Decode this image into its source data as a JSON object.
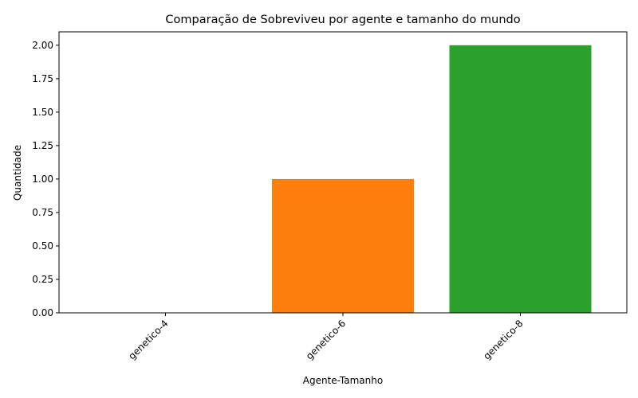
{
  "chart_data": {
    "type": "bar",
    "title": "Comparação de Sobreviveu por agente e tamanho do mundo",
    "xlabel": "Agente-Tamanho",
    "ylabel": "Quantidade",
    "categories": [
      "genetico-4",
      "genetico-6",
      "genetico-8"
    ],
    "values": [
      0,
      1,
      2
    ],
    "colors": [
      "#1f77b4",
      "#ff7f0e",
      "#2ca02c"
    ],
    "ylim": [
      0,
      2.1
    ],
    "yticks": [
      0.0,
      0.25,
      0.5,
      0.75,
      1.0,
      1.25,
      1.5,
      1.75,
      2.0
    ],
    "ytick_labels": [
      "0.00",
      "0.25",
      "0.50",
      "0.75",
      "1.00",
      "1.25",
      "1.50",
      "1.75",
      "2.00"
    ],
    "grid": false,
    "legend": "none",
    "xtick_rotation_deg": 45
  }
}
